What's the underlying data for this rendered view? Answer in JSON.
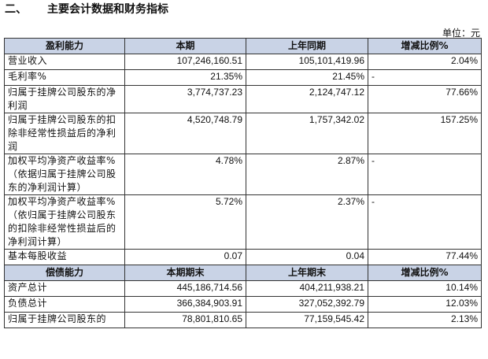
{
  "heading": {
    "number": "二、",
    "title": "主要会计数据和财务指标"
  },
  "unit_label": "单位：元",
  "section1": {
    "headers": [
      "盈利能力",
      "本期",
      "上年同期",
      "增减比例%"
    ],
    "rows": [
      {
        "label": "营业收入",
        "current": "107,246,160.51",
        "prior": "105,101,419.96",
        "change": "2.04%"
      },
      {
        "label": "毛利率%",
        "current": "21.35%",
        "prior": "21.45%",
        "change": "-"
      },
      {
        "label": "归属于挂牌公司股东的净利润",
        "current": "3,774,737.23",
        "prior": "2,124,747.12",
        "change": "77.66%"
      },
      {
        "label": "归属于挂牌公司股东的扣除非经常性损益后的净利润",
        "current": "4,520,748.79",
        "prior": "1,757,342.02",
        "change": "157.25%"
      },
      {
        "label": "加权平均净资产收益率%（依据归属于挂牌公司股东的净利润计算）",
        "current": "4.78%",
        "prior": "2.87%",
        "change": "-"
      },
      {
        "label": "加权平均净资产收益率%（依归属于挂牌公司股东的扣除非经常性损益后的净利润计算）",
        "current": "5.72%",
        "prior": "2.37%",
        "change": "-"
      },
      {
        "label": "基本每股收益",
        "current": "0.07",
        "prior": "0.04",
        "change": "77.44%"
      }
    ]
  },
  "section2": {
    "headers": [
      "偿债能力",
      "本期期末",
      "上年期末",
      "增减比例%"
    ],
    "rows": [
      {
        "label": "资产总计",
        "current": "445,186,714.56",
        "prior": "404,211,938.21",
        "change": "10.14%"
      },
      {
        "label": "负债总计",
        "current": "366,384,903.91",
        "prior": "327,052,392.79",
        "change": "12.03%"
      },
      {
        "label": "归属于挂牌公司股东的",
        "current": "78,801,810.65",
        "prior": "77,159,545.42",
        "change": "2.13%"
      }
    ]
  }
}
